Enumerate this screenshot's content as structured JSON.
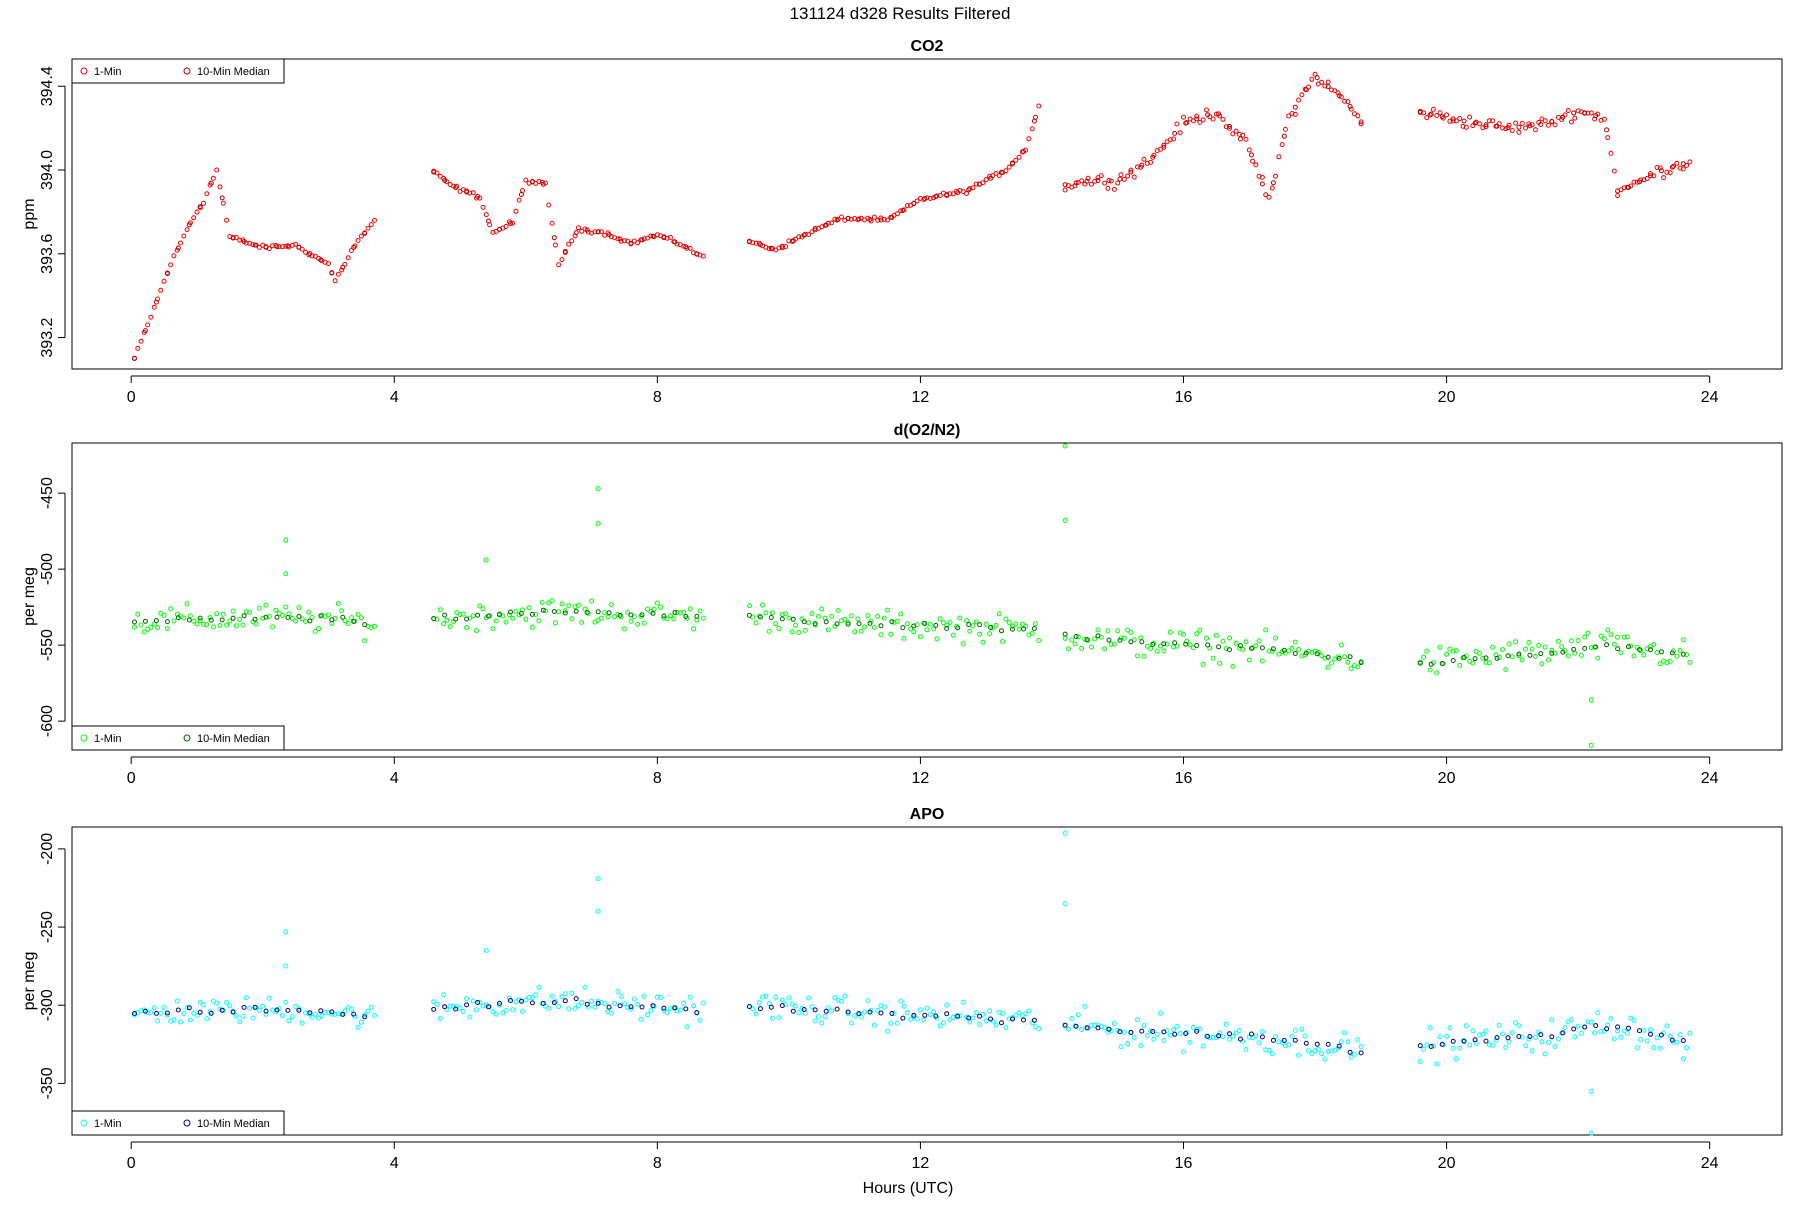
{
  "figure": {
    "title": "131124   d328   Results Filtered",
    "xlabel": "Hours (UTC)"
  },
  "chart_data": [
    {
      "type": "scatter",
      "title": "CO2",
      "ylabel": "ppm",
      "xlim": [
        -0.9,
        25.1
      ],
      "ylim": [
        393.05,
        394.53
      ],
      "xticks": [
        0,
        4,
        8,
        12,
        16,
        20,
        24
      ],
      "yticks": [
        393.2,
        393.6,
        394.0,
        394.4
      ],
      "ytick_labels": [
        "393.2",
        "393.6",
        "394.0",
        "394.4"
      ],
      "legend_position": "top-left",
      "legend": [
        "1-Min",
        "10-Min Median"
      ],
      "series": [
        {
          "name": "1-Min",
          "color": "#ff0000",
          "segments": [
            {
              "x": [
                0.05,
                0.3,
                0.6,
                0.9,
                1.1,
                1.3,
                1.5,
                2.0,
                2.5,
                3.0,
                3.1,
                3.4,
                3.7
              ],
              "y": [
                393.1,
                393.3,
                393.55,
                393.75,
                393.85,
                394.0,
                393.68,
                393.63,
                393.64,
                393.55,
                393.47,
                393.64,
                393.76
              ],
              "noise": 0.01
            },
            {
              "x": [
                4.6,
                4.9,
                5.3,
                5.5,
                5.8,
                6.0,
                6.3,
                6.5,
                6.8,
                7.2,
                7.6,
                8.0,
                8.4,
                8.7
              ],
              "y": [
                393.99,
                393.92,
                393.87,
                393.7,
                393.75,
                393.95,
                393.93,
                393.55,
                393.72,
                393.7,
                393.65,
                393.69,
                393.64,
                393.58
              ],
              "noise": 0.01
            },
            {
              "x": [
                9.4,
                9.8,
                10.3,
                10.8,
                11.5,
                12.0,
                12.7,
                13.3,
                13.6,
                13.8
              ],
              "y": [
                393.66,
                393.62,
                393.7,
                393.77,
                393.76,
                393.86,
                393.9,
                394.0,
                394.1,
                394.3
              ],
              "noise": 0.01
            },
            {
              "x": [
                14.2,
                14.6,
                15.0,
                15.5,
                16.0,
                16.5,
                17.0,
                17.3,
                17.6,
                18.0,
                18.5,
                18.7
              ],
              "y": [
                393.93,
                393.95,
                393.95,
                394.05,
                394.22,
                394.28,
                394.1,
                393.85,
                394.25,
                394.45,
                394.32,
                394.22
              ],
              "noise": 0.03
            },
            {
              "x": [
                19.6,
                20.0,
                20.5,
                21.0,
                21.5,
                22.0,
                22.4,
                22.6,
                22.8,
                23.2,
                23.7
              ],
              "y": [
                394.28,
                394.25,
                394.22,
                394.2,
                394.22,
                394.28,
                394.25,
                393.9,
                393.92,
                393.99,
                394.04
              ],
              "noise": 0.03
            }
          ]
        },
        {
          "name": "10-Min Median",
          "color": "#b40000",
          "segments": [
            {
              "x": [
                0.05,
                0.3,
                0.6,
                0.9,
                1.1,
                1.3,
                1.5,
                2.0,
                2.5,
                3.0,
                3.1,
                3.4,
                3.7
              ],
              "y": [
                393.1,
                393.3,
                393.55,
                393.75,
                393.85,
                394.0,
                393.68,
                393.63,
                393.64,
                393.55,
                393.47,
                393.64,
                393.76
              ],
              "noise": 0.0
            },
            {
              "x": [
                4.6,
                4.9,
                5.3,
                5.5,
                5.8,
                6.0,
                6.3,
                6.5,
                6.8,
                7.2,
                7.6,
                8.0,
                8.4,
                8.7
              ],
              "y": [
                393.99,
                393.92,
                393.87,
                393.7,
                393.75,
                393.95,
                393.93,
                393.55,
                393.72,
                393.7,
                393.65,
                393.69,
                393.64,
                393.58
              ],
              "noise": 0.0
            },
            {
              "x": [
                9.4,
                9.8,
                10.3,
                10.8,
                11.5,
                12.0,
                12.7,
                13.3,
                13.6,
                13.8
              ],
              "y": [
                393.66,
                393.62,
                393.7,
                393.77,
                393.76,
                393.86,
                393.9,
                394.0,
                394.1,
                394.3
              ],
              "noise": 0.0
            },
            {
              "x": [
                14.2,
                14.6,
                15.0,
                15.5,
                16.0,
                16.5,
                17.0,
                17.3,
                17.6,
                18.0,
                18.5,
                18.7
              ],
              "y": [
                393.93,
                393.95,
                393.95,
                394.05,
                394.22,
                394.28,
                394.1,
                393.85,
                394.25,
                394.45,
                394.32,
                394.22
              ],
              "noise": 0.0
            },
            {
              "x": [
                19.6,
                20.0,
                20.5,
                21.0,
                21.5,
                22.0,
                22.4,
                22.6,
                22.8,
                23.2,
                23.7
              ],
              "y": [
                394.28,
                394.25,
                394.22,
                394.2,
                394.22,
                394.28,
                394.25,
                393.9,
                393.92,
                393.99,
                394.04
              ],
              "noise": 0.0
            }
          ]
        }
      ]
    },
    {
      "type": "scatter",
      "title": "d(O2/N2)",
      "ylabel": "per meg",
      "xlim": [
        -0.9,
        25.1
      ],
      "ylim": [
        -619,
        -417
      ],
      "y_inverted": true,
      "xticks": [
        0,
        4,
        8,
        12,
        16,
        20,
        24
      ],
      "yticks": [
        -450,
        -500,
        -550,
        -600
      ],
      "ytick_labels": [
        "-450",
        "-500",
        "-550",
        "-600"
      ],
      "legend_position": "bottom-left",
      "legend": [
        "1-Min",
        "10-Min Median"
      ],
      "series": [
        {
          "name": "1-Min",
          "color": "#00ff00",
          "segments": [
            {
              "x": [
                0.05,
                1.0,
                2.0,
                3.0,
                3.7
              ],
              "y": [
                -535,
                -533,
                -532,
                -533,
                -536
              ],
              "noise": 9
            },
            {
              "x": [
                4.6,
                5.5,
                6.5,
                7.5,
                8.7
              ],
              "y": [
                -533,
                -530,
                -528,
                -530,
                -531
              ],
              "noise": 9
            },
            {
              "x": [
                9.4,
                10.5,
                11.5,
                12.5,
                13.8
              ],
              "y": [
                -530,
                -535,
                -537,
                -538,
                -540
              ],
              "noise": 9
            },
            {
              "x": [
                14.2,
                15.0,
                16.0,
                17.0,
                18.0,
                18.7
              ],
              "y": [
                -543,
                -548,
                -550,
                -552,
                -556,
                -560
              ],
              "noise": 10
            },
            {
              "x": [
                19.6,
                20.5,
                21.5,
                22.5,
                23.7
              ],
              "y": [
                -562,
                -558,
                -555,
                -550,
                -558
              ],
              "noise": 10
            }
          ],
          "outliers": {
            "x": [
              2.35,
              2.35,
              5.4,
              7.1,
              7.1,
              14.2,
              14.2,
              22.2,
              22.2
            ],
            "y": [
              -481,
              -503,
              -494,
              -470,
              -447,
              -468,
              -419,
              -586,
              -616
            ]
          }
        },
        {
          "name": "10-Min Median",
          "color": "#006400",
          "segments": [
            {
              "x": [
                0.05,
                1.0,
                2.0,
                3.0,
                3.7
              ],
              "y": [
                -535,
                -533,
                -532,
                -533,
                -536
              ],
              "noise": 2
            },
            {
              "x": [
                4.6,
                5.5,
                6.5,
                7.5,
                8.7
              ],
              "y": [
                -533,
                -530,
                -528,
                -530,
                -531
              ],
              "noise": 2
            },
            {
              "x": [
                9.4,
                10.5,
                11.5,
                12.5,
                13.8
              ],
              "y": [
                -530,
                -535,
                -537,
                -538,
                -540
              ],
              "noise": 2
            },
            {
              "x": [
                14.2,
                15.0,
                16.0,
                17.0,
                18.0,
                18.7
              ],
              "y": [
                -543,
                -548,
                -550,
                -552,
                -556,
                -560
              ],
              "noise": 2
            },
            {
              "x": [
                19.6,
                20.5,
                21.5,
                22.5,
                23.7
              ],
              "y": [
                -562,
                -558,
                -555,
                -550,
                -558
              ],
              "noise": 2
            }
          ]
        }
      ]
    },
    {
      "type": "scatter",
      "title": "APO",
      "ylabel": "per meg",
      "xlim": [
        -0.9,
        25.1
      ],
      "ylim": [
        -383,
        -186
      ],
      "y_inverted": true,
      "xticks": [
        0,
        4,
        8,
        12,
        16,
        20,
        24
      ],
      "yticks": [
        -200,
        -250,
        -300,
        -350
      ],
      "ytick_labels": [
        "-200",
        "-250",
        "-300",
        "-350"
      ],
      "legend_position": "bottom-left",
      "legend": [
        "1-Min",
        "10-Min Median"
      ],
      "series": [
        {
          "name": "1-Min",
          "color": "#00ffff",
          "segments": [
            {
              "x": [
                0.05,
                1.0,
                2.0,
                3.0,
                3.7
              ],
              "y": [
                -305,
                -304,
                -303,
                -304,
                -308
              ],
              "noise": 8
            },
            {
              "x": [
                4.6,
                5.5,
                6.5,
                7.5,
                8.7
              ],
              "y": [
                -302,
                -299,
                -297,
                -300,
                -303
              ],
              "noise": 9
            },
            {
              "x": [
                9.4,
                10.5,
                11.5,
                12.5,
                13.8
              ],
              "y": [
                -300,
                -303,
                -306,
                -307,
                -310
              ],
              "noise": 9
            },
            {
              "x": [
                14.2,
                15.0,
                16.0,
                17.0,
                18.0,
                18.7
              ],
              "y": [
                -312,
                -316,
                -318,
                -320,
                -324,
                -330
              ],
              "noise": 10
            },
            {
              "x": [
                19.6,
                20.5,
                21.5,
                22.5,
                23.7
              ],
              "y": [
                -326,
                -322,
                -320,
                -312,
                -325
              ],
              "noise": 10
            }
          ],
          "outliers": {
            "x": [
              2.35,
              2.35,
              5.4,
              7.1,
              7.1,
              14.2,
              14.2,
              22.2,
              22.2
            ],
            "y": [
              -253,
              -275,
              -265,
              -240,
              -219,
              -235,
              -190,
              -355,
              -382
            ]
          }
        },
        {
          "name": "10-Min Median",
          "color": "#00008b",
          "segments": [
            {
              "x": [
                0.05,
                1.0,
                2.0,
                3.0,
                3.7
              ],
              "y": [
                -305,
                -304,
                -303,
                -304,
                -308
              ],
              "noise": 2
            },
            {
              "x": [
                4.6,
                5.5,
                6.5,
                7.5,
                8.7
              ],
              "y": [
                -302,
                -299,
                -297,
                -300,
                -303
              ],
              "noise": 2
            },
            {
              "x": [
                9.4,
                10.5,
                11.5,
                12.5,
                13.8
              ],
              "y": [
                -300,
                -303,
                -306,
                -307,
                -310
              ],
              "noise": 2
            },
            {
              "x": [
                14.2,
                15.0,
                16.0,
                17.0,
                18.0,
                18.7
              ],
              "y": [
                -312,
                -316,
                -318,
                -320,
                -324,
                -330
              ],
              "noise": 2
            },
            {
              "x": [
                19.6,
                20.5,
                21.5,
                22.5,
                23.7
              ],
              "y": [
                -326,
                -322,
                -320,
                -312,
                -325
              ],
              "noise": 2
            }
          ]
        }
      ]
    }
  ]
}
